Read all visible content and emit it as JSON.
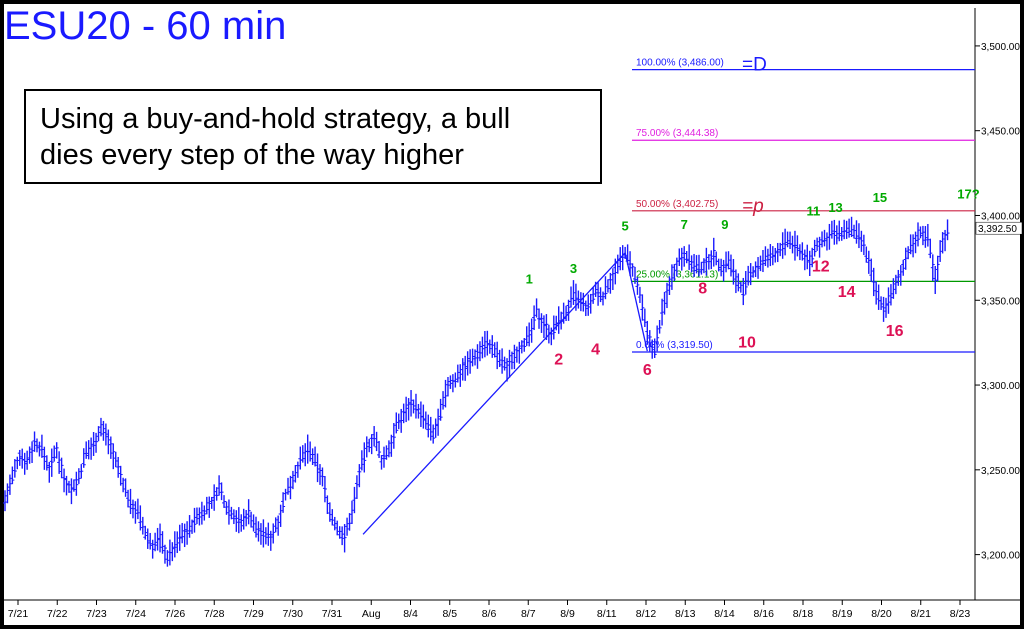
{
  "title": "ESU20 - 60 min",
  "annotation": {
    "line1": "Using a buy-and-hold strategy, a bull",
    "line2": "dies every step of the way higher"
  },
  "chart_data": {
    "type": "line",
    "title": "ESU20 - 60 min",
    "xlabel": "",
    "ylabel": "",
    "ylim": [
      3175,
      3520
    ],
    "yticks": [
      "3,200.00",
      "3,250.00",
      "3,300.00",
      "3,350.00",
      "3,400.00",
      "3,450.00",
      "3,500.00"
    ],
    "ytick_values": [
      3200,
      3250,
      3300,
      3350,
      3400,
      3450,
      3500
    ],
    "last_price_label": "3,392.50",
    "last_price": 3392.5,
    "x_tick_labels": [
      "7/21",
      "7/22",
      "7/23",
      "7/24",
      "7/26",
      "7/28",
      "7/29",
      "7/30",
      "7/31",
      "Aug",
      "8/4",
      "8/5",
      "8/6",
      "8/7",
      "8/9",
      "8/11",
      "8/12",
      "8/13",
      "8/14",
      "8/16",
      "8/18",
      "8/19",
      "8/20",
      "8/21",
      "8/23"
    ],
    "series": [
      {
        "color": "#1a1aff",
        "points": [
          [
            0,
            3232
          ],
          [
            2,
            3245
          ],
          [
            4,
            3258
          ],
          [
            6,
            3255
          ],
          [
            8,
            3266
          ],
          [
            10,
            3262
          ],
          [
            12,
            3250
          ],
          [
            14,
            3262
          ],
          [
            16,
            3245
          ],
          [
            18,
            3238
          ],
          [
            20,
            3245
          ],
          [
            22,
            3260
          ],
          [
            24,
            3265
          ],
          [
            26,
            3275
          ],
          [
            28,
            3268
          ],
          [
            30,
            3255
          ],
          [
            32,
            3242
          ],
          [
            34,
            3230
          ],
          [
            36,
            3225
          ],
          [
            38,
            3212
          ],
          [
            40,
            3205
          ],
          [
            42,
            3210
          ],
          [
            44,
            3198
          ],
          [
            46,
            3205
          ],
          [
            48,
            3212
          ],
          [
            50,
            3215
          ],
          [
            52,
            3222
          ],
          [
            54,
            3226
          ],
          [
            56,
            3230
          ],
          [
            58,
            3240
          ],
          [
            60,
            3228
          ],
          [
            62,
            3223
          ],
          [
            64,
            3218
          ],
          [
            66,
            3225
          ],
          [
            68,
            3215
          ],
          [
            70,
            3212
          ],
          [
            72,
            3210
          ],
          [
            74,
            3220
          ],
          [
            76,
            3235
          ],
          [
            78,
            3245
          ],
          [
            80,
            3255
          ],
          [
            82,
            3262
          ],
          [
            84,
            3255
          ],
          [
            86,
            3245
          ],
          [
            88,
            3225
          ],
          [
            90,
            3215
          ],
          [
            92,
            3210
          ],
          [
            94,
            3225
          ],
          [
            96,
            3248
          ],
          [
            98,
            3262
          ],
          [
            100,
            3270
          ],
          [
            102,
            3255
          ],
          [
            104,
            3262
          ],
          [
            106,
            3275
          ],
          [
            108,
            3283
          ],
          [
            110,
            3290
          ],
          [
            112,
            3285
          ],
          [
            114,
            3278
          ],
          [
            116,
            3270
          ],
          [
            118,
            3283
          ],
          [
            120,
            3300
          ],
          [
            122,
            3303
          ],
          [
            124,
            3310
          ],
          [
            126,
            3314
          ],
          [
            128,
            3318
          ],
          [
            130,
            3325
          ],
          [
            132,
            3322
          ],
          [
            134,
            3315
          ],
          [
            136,
            3310
          ],
          [
            138,
            3318
          ],
          [
            140,
            3323
          ],
          [
            142,
            3328
          ],
          [
            144,
            3343
          ],
          [
            146,
            3336
          ],
          [
            148,
            3330
          ],
          [
            150,
            3338
          ],
          [
            152,
            3342
          ],
          [
            154,
            3353
          ],
          [
            156,
            3348
          ],
          [
            158,
            3345
          ],
          [
            160,
            3355
          ],
          [
            162,
            3352
          ],
          [
            164,
            3362
          ],
          [
            166,
            3370
          ],
          [
            168,
            3378
          ],
          [
            170,
            3368
          ],
          [
            172,
            3352
          ],
          [
            174,
            3330
          ],
          [
            176,
            3320
          ],
          [
            178,
            3342
          ],
          [
            180,
            3360
          ],
          [
            182,
            3372
          ],
          [
            184,
            3378
          ],
          [
            186,
            3372
          ],
          [
            188,
            3368
          ],
          [
            190,
            3372
          ],
          [
            192,
            3378
          ],
          [
            194,
            3368
          ],
          [
            196,
            3373
          ],
          [
            198,
            3363
          ],
          [
            200,
            3355
          ],
          [
            202,
            3365
          ],
          [
            204,
            3370
          ],
          [
            206,
            3374
          ],
          [
            208,
            3376
          ],
          [
            210,
            3380
          ],
          [
            212,
            3385
          ],
          [
            214,
            3382
          ],
          [
            216,
            3378
          ],
          [
            218,
            3372
          ],
          [
            220,
            3383
          ],
          [
            222,
            3385
          ],
          [
            224,
            3390
          ],
          [
            226,
            3388
          ],
          [
            228,
            3392
          ],
          [
            230,
            3390
          ],
          [
            232,
            3385
          ],
          [
            234,
            3372
          ],
          [
            236,
            3355
          ],
          [
            238,
            3345
          ],
          [
            240,
            3352
          ],
          [
            242,
            3362
          ],
          [
            244,
            3375
          ],
          [
            246,
            3383
          ],
          [
            248,
            3390
          ],
          [
            250,
            3386
          ],
          [
            252,
            3362
          ],
          [
            254,
            3385
          ],
          [
            256,
            3392.5
          ]
        ]
      }
    ],
    "x_max": 256,
    "fib_levels": [
      {
        "label": "100.00% (3,486.00)",
        "suffix": "=D",
        "value": 3486.0,
        "color": "#1a1aff"
      },
      {
        "label": "75.00% (3,444.38)",
        "suffix": "",
        "value": 3444.38,
        "color": "#e020e0"
      },
      {
        "label": "50.00% (3,402.75)",
        "suffix": "=p",
        "value": 3402.75,
        "color": "#cc2244"
      },
      {
        "label": "25.00% (3,361.13)",
        "suffix": "",
        "value": 3361.13,
        "color": "#009900"
      },
      {
        "label": "0.00% (3,319.50)",
        "suffix": "",
        "value": 3319.5,
        "color": "#1a1aff"
      }
    ],
    "wave_labels": [
      {
        "text": "1",
        "x": 142,
        "y": 3360,
        "color": "#00aa00",
        "size": 13
      },
      {
        "text": "2",
        "x": 150,
        "y": 3312,
        "color": "#dd1155",
        "size": 16
      },
      {
        "text": "3",
        "x": 154,
        "y": 3366,
        "color": "#00aa00",
        "size": 13
      },
      {
        "text": "4",
        "x": 160,
        "y": 3318,
        "color": "#dd1155",
        "size": 16
      },
      {
        "text": "5",
        "x": 168,
        "y": 3391,
        "color": "#00aa00",
        "size": 13
      },
      {
        "text": "6",
        "x": 174,
        "y": 3306,
        "color": "#dd1155",
        "size": 16
      },
      {
        "text": "7",
        "x": 184,
        "y": 3392,
        "color": "#00aa00",
        "size": 13
      },
      {
        "text": "8",
        "x": 189,
        "y": 3354,
        "color": "#dd1155",
        "size": 16
      },
      {
        "text": "9",
        "x": 195,
        "y": 3392,
        "color": "#00aa00",
        "size": 13
      },
      {
        "text": "10",
        "x": 201,
        "y": 3322,
        "color": "#dd1155",
        "size": 16
      },
      {
        "text": "11",
        "x": 219,
        "y": 3400,
        "color": "#00aa00",
        "size": 13
      },
      {
        "text": "12",
        "x": 221,
        "y": 3367,
        "color": "#dd1155",
        "size": 16
      },
      {
        "text": "13",
        "x": 225,
        "y": 3402,
        "color": "#00aa00",
        "size": 13
      },
      {
        "text": "14",
        "x": 228,
        "y": 3352,
        "color": "#dd1155",
        "size": 16
      },
      {
        "text": "15",
        "x": 237,
        "y": 3408,
        "color": "#00aa00",
        "size": 13
      },
      {
        "text": "16",
        "x": 241,
        "y": 3329,
        "color": "#dd1155",
        "size": 16
      },
      {
        "text": "17?",
        "x": 261,
        "y": 3410,
        "color": "#00aa00",
        "size": 13
      }
    ],
    "abcd_lines": [
      [
        [
          97,
          3212
        ],
        [
          168,
          3378
        ]
      ],
      [
        [
          168,
          3378
        ],
        [
          174,
          3320
        ]
      ]
    ],
    "grid": false,
    "legend": "none"
  }
}
